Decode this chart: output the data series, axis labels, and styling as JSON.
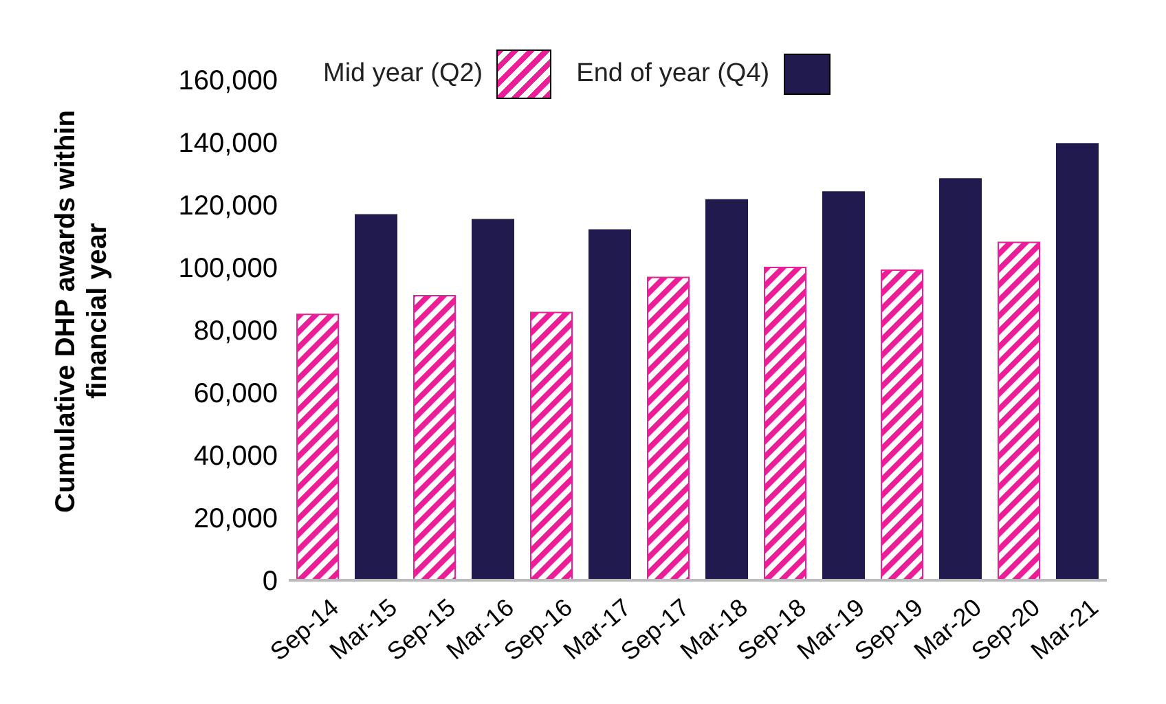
{
  "chart_data": {
    "type": "bar",
    "ylabel": "Cumulative DHP awards within financial year",
    "categories": [
      "Sep-14",
      "Mar-15",
      "Sep-15",
      "Mar-16",
      "Sep-16",
      "Mar-17",
      "Sep-17",
      "Mar-18",
      "Sep-18",
      "Mar-19",
      "Sep-19",
      "Mar-20",
      "Sep-20",
      "Mar-21"
    ],
    "series": [
      {
        "name": "Mid year (Q2)",
        "color": "#ec1e97",
        "values": [
          85000,
          null,
          91000,
          null,
          85600,
          null,
          96800,
          null,
          100000,
          null,
          99100,
          null,
          108000,
          null
        ]
      },
      {
        "name": "End of year (Q4)",
        "color": "#201a4e",
        "values": [
          null,
          116800,
          null,
          115300,
          null,
          112000,
          null,
          121600,
          null,
          124100,
          null,
          128300,
          null,
          139500
        ]
      }
    ],
    "ylim": [
      0,
      160000
    ],
    "yticks": [
      0,
      {
        "value": 20000,
        "label": "20,000"
      },
      {
        "value": 40000,
        "label": "40,000"
      },
      {
        "value": 60000,
        "label": "60,000"
      },
      {
        "value": 80000,
        "label": "80,000"
      },
      {
        "value": 100000,
        "label": "100,000"
      },
      {
        "value": 120000,
        "label": "120,000"
      },
      {
        "value": 140000,
        "label": "140,000"
      },
      {
        "value": 160000,
        "label": "160,000"
      }
    ],
    "grid": false,
    "legend": "top left"
  }
}
